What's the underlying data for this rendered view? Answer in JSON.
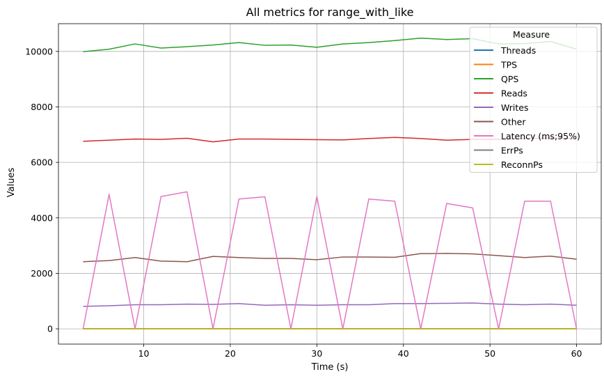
{
  "chart_data": {
    "type": "line",
    "title": "All metrics for range_with_like",
    "xlabel": "Time (s)",
    "ylabel": "Values",
    "xlim": [
      0.15,
      62.85
    ],
    "ylim": [
      -550,
      11000
    ],
    "xticks": [
      10,
      20,
      30,
      40,
      50,
      60
    ],
    "yticks": [
      0,
      2000,
      4000,
      6000,
      8000,
      10000
    ],
    "grid": true,
    "legend": {
      "title": "Measure",
      "placement": "top-right"
    },
    "x": [
      3,
      6,
      9,
      12,
      15,
      18,
      21,
      24,
      27,
      30,
      33,
      36,
      39,
      42,
      45,
      48,
      51,
      54,
      57,
      60
    ],
    "series": [
      {
        "name": "Threads",
        "color": "#1f77b4",
        "values": [
          4,
          4,
          4,
          4,
          4,
          4,
          4,
          4,
          4,
          4,
          4,
          4,
          4,
          4,
          4,
          4,
          4,
          4,
          4,
          4
        ]
      },
      {
        "name": "TPS",
        "color": "#ff7f0e",
        "values": [
          10,
          10,
          10,
          10,
          10,
          10,
          10,
          10,
          10,
          10,
          10,
          10,
          10,
          10,
          10,
          10,
          10,
          10,
          10,
          10
        ]
      },
      {
        "name": "QPS",
        "color": "#2ca02c",
        "values": [
          9990,
          10080,
          10270,
          10120,
          10170,
          10230,
          10320,
          10220,
          10230,
          10150,
          10270,
          10320,
          10390,
          10480,
          10430,
          10460,
          10270,
          10280,
          10360,
          10080
        ]
      },
      {
        "name": "Reads",
        "color": "#d62728",
        "values": [
          6760,
          6800,
          6840,
          6830,
          6870,
          6740,
          6840,
          6840,
          6830,
          6820,
          6810,
          6860,
          6900,
          6860,
          6800,
          6830,
          6830,
          6860,
          6880,
          6860
        ]
      },
      {
        "name": "Writes",
        "color": "#9467bd",
        "values": [
          810,
          830,
          870,
          870,
          890,
          880,
          910,
          850,
          870,
          850,
          870,
          870,
          910,
          910,
          920,
          930,
          890,
          870,
          890,
          850
        ]
      },
      {
        "name": "Other",
        "color": "#8c564b",
        "values": [
          2420,
          2460,
          2570,
          2440,
          2420,
          2610,
          2570,
          2540,
          2540,
          2490,
          2590,
          2590,
          2580,
          2710,
          2720,
          2700,
          2640,
          2570,
          2620,
          2510
        ]
      },
      {
        "name": "Latency (ms;95%)",
        "color": "#e377c2",
        "values": [
          0,
          4850,
          0,
          4770,
          4940,
          0,
          4680,
          4760,
          0,
          4770,
          0,
          4680,
          4600,
          0,
          4520,
          4360,
          0,
          4600,
          4600,
          0
        ]
      },
      {
        "name": "ErrPs",
        "color": "#7f7f7f",
        "values": [
          0,
          0,
          0,
          0,
          0,
          0,
          0,
          0,
          0,
          0,
          0,
          0,
          0,
          0,
          0,
          0,
          0,
          0,
          0,
          0
        ]
      },
      {
        "name": "ReconnPs",
        "color": "#bcbd22",
        "values": [
          0,
          0,
          0,
          0,
          0,
          0,
          0,
          0,
          0,
          0,
          0,
          0,
          0,
          0,
          0,
          0,
          0,
          0,
          0,
          0
        ]
      }
    ]
  }
}
